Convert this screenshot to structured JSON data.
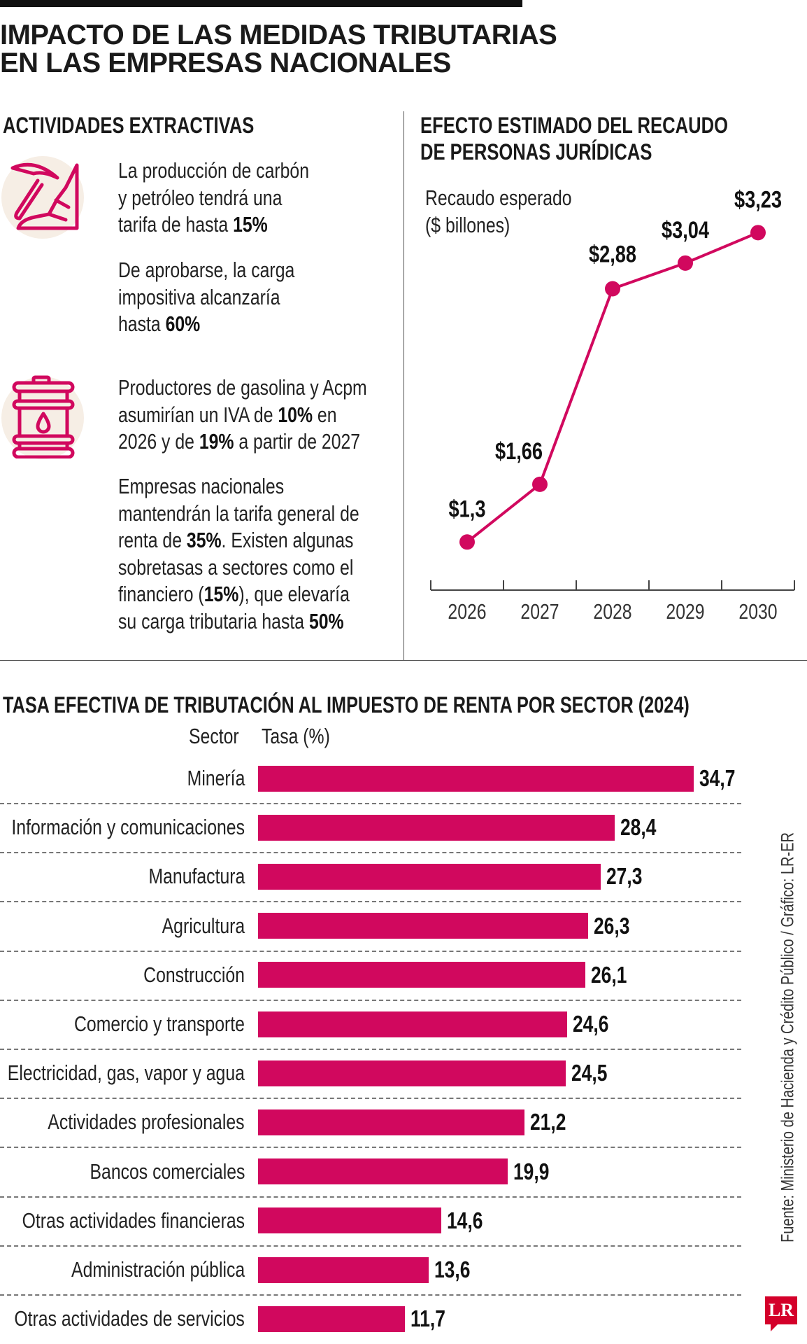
{
  "title": {
    "line1": "IMPACTO DE LAS MEDIDAS TRIBUTARIAS",
    "line2": "EN LAS EMPRESAS NACIONALES"
  },
  "left": {
    "heading": "ACTIVIDADES EXTRACTIVAS",
    "icons": [
      "pickaxe-mining-icon",
      "oil-barrel-icon"
    ],
    "p1": [
      "La producción de carbón",
      "y petróleo tendrá una",
      "tarifa de hasta ",
      "15%"
    ],
    "p2": [
      "De aprobarse, la carga",
      "impositiva alcanzaría",
      "hasta ",
      "60%"
    ],
    "p3": [
      "Productores de gasolina y Acpm",
      "asumirían un IVA de ",
      "10%",
      " en",
      "2026 y de ",
      "19%",
      " a partir de 2027"
    ],
    "p4": [
      "Empresas nacionales",
      "mantendrán la tarifa general de",
      "renta de ",
      "35%",
      ". Existen algunas",
      "sobretasas a sectores como el",
      "financiero (",
      "15%",
      "), que elevaría",
      "su carga tributaria hasta ",
      "50%"
    ]
  },
  "colors": {
    "accent": "#d1085e",
    "icon_bg": "#f6eee5",
    "text": "#1a1a1a"
  },
  "source": "Fuente: Ministerio de Hacienda y Crédito Público  / Gráfico: LR-ER",
  "logo": "LR",
  "chart_data": [
    {
      "type": "line",
      "title": "EFECTO ESTIMADO DEL RECAUDO DE PERSONAS JURÍDICAS",
      "title_line1": "EFECTO ESTIMADO DEL RECAUDO",
      "title_line2": "DE PERSONAS JURÍDICAS",
      "ylabel_line1": "Recaudo esperado",
      "ylabel_line2": "($ billones)",
      "x": [
        "2026",
        "2027",
        "2028",
        "2029",
        "2030"
      ],
      "values": [
        1.3,
        1.66,
        2.88,
        3.04,
        3.23
      ],
      "labels": [
        "$1,3",
        "$1,66",
        "$2,88",
        "$3,04",
        "$3,23"
      ],
      "grid": false
    },
    {
      "type": "bar",
      "orientation": "horizontal",
      "title": "TASA EFECTIVA DE TRIBUTACIÓN AL IMPUESTO DE RENTA POR SECTOR (2024)",
      "category_header": "Sector",
      "value_header": "Tasa (%)",
      "categories": [
        "Minería",
        "Información y comunicaciones",
        "Manufactura",
        "Agricultura",
        "Construcción",
        "Comercio y transporte",
        "Electricidad, gas, vapor y agua",
        "Actividades profesionales",
        "Bancos comerciales",
        "Otras actividades financieras",
        "Administración pública",
        "Otras actividades de servicios"
      ],
      "values": [
        34.7,
        28.4,
        27.3,
        26.3,
        26.1,
        24.6,
        24.5,
        21.2,
        19.9,
        14.6,
        13.6,
        11.7
      ],
      "labels": [
        "34,7",
        "28,4",
        "27,3",
        "26,3",
        "26,1",
        "24,6",
        "24,5",
        "21,2",
        "19,9",
        "14,6",
        "13,6",
        "11,7"
      ],
      "grid": false
    }
  ]
}
